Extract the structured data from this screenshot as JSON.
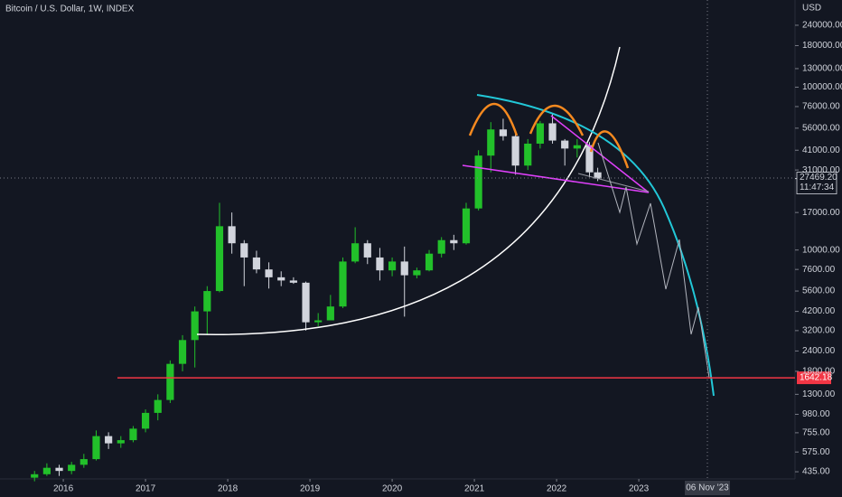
{
  "chart_data": {
    "type": "candlestick",
    "title": "Bitcoin / U.S. Dollar, 1W, INDEX",
    "currency": "USD",
    "log_scale": true,
    "grid": false,
    "up_color": "#22c02a",
    "down_color": "#d1d4dc",
    "xlim": [
      2015.23,
      2024.9
    ],
    "xticks": [
      2016,
      2017,
      2018,
      2019,
      2020,
      2021,
      2022,
      2023
    ],
    "ylim": [
      393,
      343000
    ],
    "yticks": [
      {
        "value": 240000,
        "label": "240000.00"
      },
      {
        "value": 180000,
        "label": "180000.00"
      },
      {
        "value": 130000,
        "label": "130000.00"
      },
      {
        "value": 100000,
        "label": "100000.00"
      },
      {
        "value": 76000,
        "label": "76000.00"
      },
      {
        "value": 56000,
        "label": "56000.00"
      },
      {
        "value": 41000,
        "label": "41000.00"
      },
      {
        "value": 31000,
        "label": "31000.00"
      },
      {
        "value": 17000,
        "label": "17000.00"
      },
      {
        "value": 10000,
        "label": "10000.00"
      },
      {
        "value": 7600,
        "label": "7600.00"
      },
      {
        "value": 5600,
        "label": "5600.00"
      },
      {
        "value": 4200,
        "label": "4200.00"
      },
      {
        "value": 3200,
        "label": "3200.00"
      },
      {
        "value": 2400,
        "label": "2400.00"
      },
      {
        "value": 1800,
        "label": "1800.00"
      },
      {
        "value": 1300,
        "label": "1300.00"
      },
      {
        "value": 980,
        "label": "980.00"
      },
      {
        "value": 755,
        "label": "755.00"
      },
      {
        "value": 575,
        "label": "575.00"
      },
      {
        "value": 435,
        "label": "435.00"
      }
    ],
    "x": [
      2015.65,
      2015.8,
      2015.95,
      2016.1,
      2016.25,
      2016.4,
      2016.55,
      2016.7,
      2016.85,
      2017.0,
      2017.15,
      2017.3,
      2017.45,
      2017.6,
      2017.75,
      2017.9,
      2018.05,
      2018.2,
      2018.35,
      2018.5,
      2018.65,
      2018.8,
      2018.95,
      2019.1,
      2019.25,
      2019.4,
      2019.55,
      2019.7,
      2019.85,
      2020.0,
      2020.15,
      2020.3,
      2020.45,
      2020.6,
      2020.75,
      2020.9,
      2021.05,
      2021.2,
      2021.35,
      2021.5,
      2021.65,
      2021.8,
      2021.95,
      2022.1,
      2022.25,
      2022.4,
      2022.5
    ],
    "open": [
      400,
      420,
      460,
      440,
      480,
      520,
      720,
      650,
      680,
      800,
      1000,
      1200,
      2000,
      2800,
      4200,
      5600,
      14000,
      11000,
      9000,
      7600,
      6800,
      6500,
      6300,
      3600,
      3700,
      4500,
      8500,
      11000,
      9000,
      7500,
      8500,
      7000,
      7500,
      9500,
      11500,
      11000,
      18000,
      38000,
      55000,
      50000,
      33000,
      45000,
      60000,
      47000,
      42000,
      44000,
      30000
    ],
    "high": [
      440,
      490,
      480,
      500,
      560,
      780,
      760,
      720,
      830,
      1050,
      1300,
      2100,
      3000,
      4500,
      6000,
      19500,
      17000,
      11500,
      9900,
      8400,
      7400,
      6800,
      6400,
      4100,
      5300,
      9000,
      13800,
      11500,
      10300,
      9000,
      10500,
      7800,
      10000,
      12000,
      12400,
      19500,
      41000,
      61000,
      64000,
      52000,
      48000,
      62000,
      69000,
      48000,
      48000,
      46000,
      32000
    ],
    "low": [
      380,
      410,
      410,
      420,
      460,
      510,
      600,
      610,
      660,
      760,
      900,
      1150,
      1800,
      1900,
      3000,
      5500,
      9500,
      6000,
      7200,
      5800,
      6000,
      6200,
      3200,
      3400,
      3700,
      4400,
      8300,
      8200,
      6500,
      6900,
      3900,
      6700,
      7400,
      9000,
      10000,
      10800,
      17500,
      30000,
      47000,
      29000,
      31000,
      42000,
      45000,
      33000,
      37000,
      28000,
      26500
    ],
    "close": [
      420,
      460,
      440,
      480,
      520,
      720,
      650,
      680,
      800,
      1000,
      1200,
      2000,
      2800,
      4200,
      5600,
      14000,
      11000,
      9000,
      7600,
      6800,
      6500,
      6300,
      3600,
      3700,
      4500,
      8500,
      11000,
      9000,
      7500,
      8500,
      7000,
      7500,
      9500,
      11500,
      11000,
      18000,
      38000,
      55000,
      50000,
      33000,
      45000,
      60000,
      47000,
      42000,
      44000,
      30000,
      27469.2
    ],
    "last_price": {
      "value": 27469.2,
      "label": "27469.20",
      "countdown": "11:47:34"
    },
    "price_lines": [
      {
        "value": 1642.18,
        "label": "1642.18",
        "color": "#f23645"
      }
    ],
    "crosshair_label": "06 Nov '23"
  }
}
